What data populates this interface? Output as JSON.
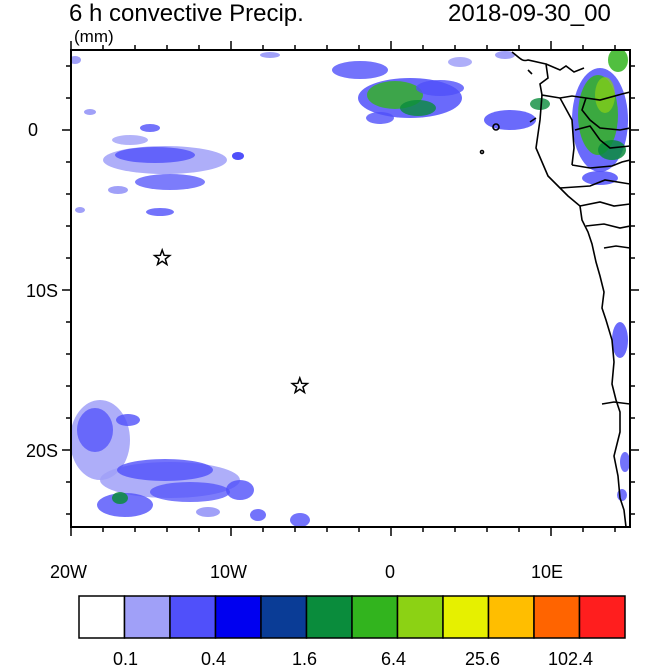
{
  "title": "6 h convective Precip.",
  "datetime": "2018-09-30_00",
  "units": "(mm)",
  "x_axis_labels": [
    "20W",
    "10W",
    "0",
    "10E"
  ],
  "y_axis_labels": [
    "0",
    "10S",
    "20S"
  ],
  "colorbar": {
    "colors": [
      "#ffffff",
      "#a0a0f8",
      "#5050fa",
      "#0000f0",
      "#0a3c96",
      "#0a8c3c",
      "#32b41e",
      "#8cd214",
      "#e6f000",
      "#ffbe00",
      "#ff6400",
      "#ff1e1e"
    ],
    "labels": [
      "0.1",
      "0.4",
      "1.6",
      "6.4",
      "25.6",
      "102.4"
    ]
  },
  "markers": [
    {
      "type": "star",
      "lon": -14.3,
      "lat": -8.0
    },
    {
      "type": "star",
      "lon": -5.7,
      "lat": -16.0
    }
  ]
}
